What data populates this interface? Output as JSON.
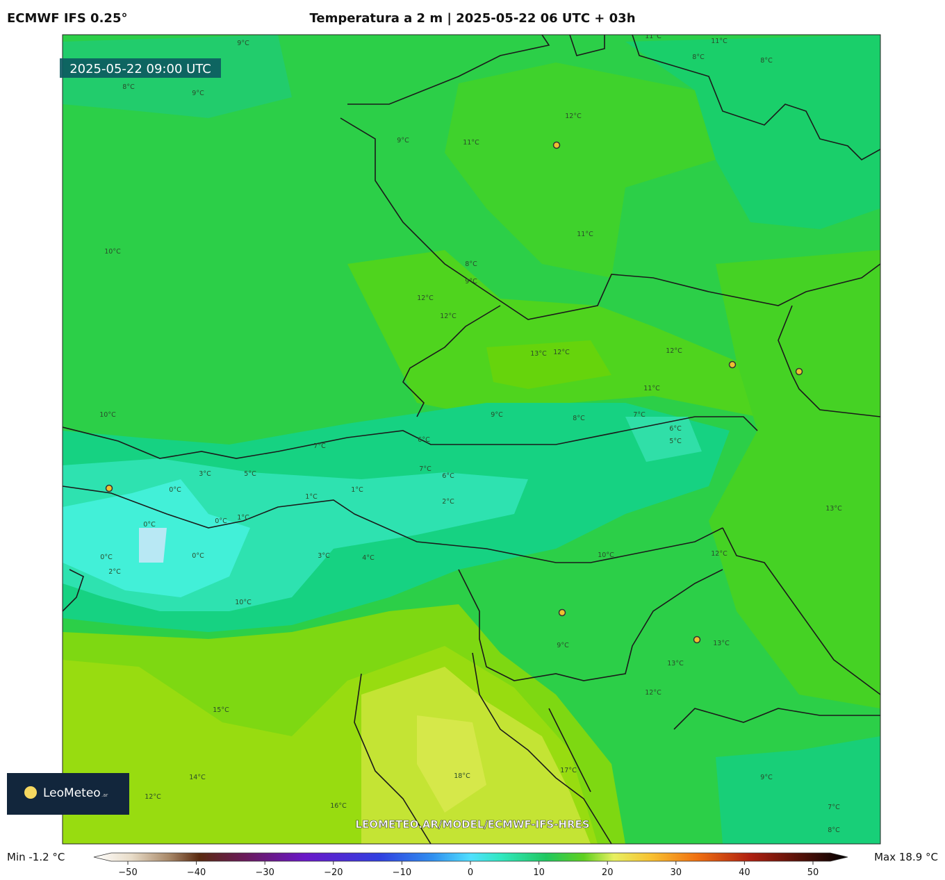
{
  "header": {
    "model": "ECMWF IFS 0.25°",
    "title": "Temperatura a 2 m | 2025-05-22 06 UTC + 03h"
  },
  "map": {
    "valid_time": "2025-05-22 09:00 UTC",
    "watermark": "LEOMETEO.AR/MODEL/ECMWF-IFS-HRES",
    "logo": {
      "name": "LeoMeteo",
      "suffix": ".ar"
    },
    "contour_labels": [
      "12°C",
      "11°C",
      "9°C",
      "11°C",
      "8°C",
      "9°C",
      "12°C",
      "12°C",
      "13°C",
      "12°C",
      "12°C",
      "11°C",
      "9°C",
      "8°C",
      "7°C",
      "6°C",
      "5°C",
      "6°C",
      "7°C",
      "6°C",
      "2°C",
      "1°C",
      "1°C",
      "0°C",
      "3°C",
      "0°C",
      "0°C",
      "1°C",
      "0°C",
      "0°C",
      "2°C",
      "3°C",
      "4°C",
      "10°C",
      "10°C",
      "12°C",
      "13°C",
      "13°C",
      "13°C",
      "9°C",
      "12°C",
      "15°C",
      "18°C",
      "17°C",
      "16°C",
      "14°C",
      "12°C",
      "9°C",
      "7°C",
      "8°C",
      "8°C",
      "8°C",
      "11°C",
      "11°C",
      "9°C",
      "8°C",
      "9°C",
      "10°C",
      "10°C",
      "7°C",
      "5°C"
    ]
  },
  "colorbar": {
    "min_label": "Min -1.2 °C",
    "max_label": "Max 18.9 °C",
    "ticks": [
      {
        "value": -50,
        "label": "−50"
      },
      {
        "value": -40,
        "label": "−40"
      },
      {
        "value": -30,
        "label": "−30"
      },
      {
        "value": -20,
        "label": "−20"
      },
      {
        "value": -10,
        "label": "−10"
      },
      0,
      10,
      20,
      30,
      40,
      50
    ]
  }
}
